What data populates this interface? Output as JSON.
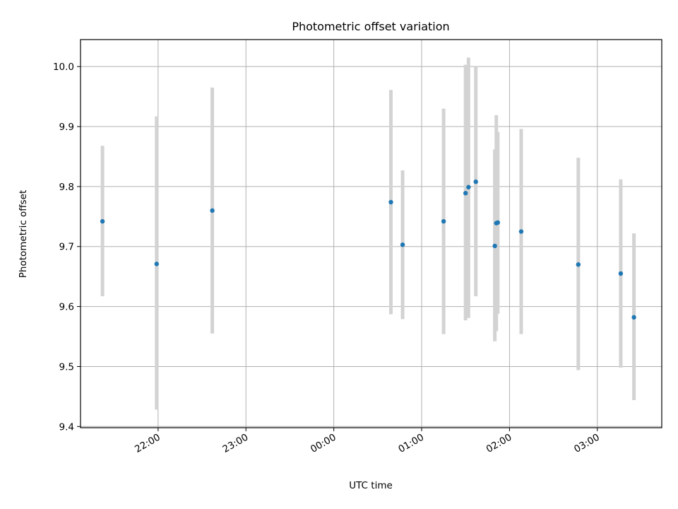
{
  "chart_data": {
    "type": "scatter",
    "title": "Photometric offset variation",
    "xlabel": "UTC time",
    "ylabel": "Photometric offset",
    "xlim": [
      "21:07",
      "03:44"
    ],
    "ylim": [
      9.398,
      10.045
    ],
    "grid": true,
    "x_ticks": [
      "22:00",
      "23:00",
      "00:00",
      "01:00",
      "02:00",
      "03:00"
    ],
    "y_ticks": [
      "9.4",
      "9.5",
      "9.6",
      "9.7",
      "9.8",
      "9.9",
      "10.0"
    ],
    "marker_color": "#1f77b4",
    "errorbar_color": "#d3d3d3",
    "series": [
      {
        "points": [
          {
            "time": "21:22",
            "y": 9.742,
            "ylow": 9.617,
            "yhigh": 9.868
          },
          {
            "time": "21:59",
            "y": 9.671,
            "ylow": 9.428,
            "yhigh": 9.917
          },
          {
            "time": "22:37",
            "y": 9.76,
            "ylow": 9.555,
            "yhigh": 9.965
          },
          {
            "time": "00:39",
            "y": 9.774,
            "ylow": 9.587,
            "yhigh": 9.961
          },
          {
            "time": "00:47",
            "y": 9.703,
            "ylow": 9.579,
            "yhigh": 9.827
          },
          {
            "time": "01:15",
            "y": 9.742,
            "ylow": 9.554,
            "yhigh": 9.93
          },
          {
            "time": "01:30",
            "y": 9.789,
            "ylow": 9.577,
            "yhigh": 10.003
          },
          {
            "time": "01:32",
            "y": 9.799,
            "ylow": 9.581,
            "yhigh": 10.015
          },
          {
            "time": "01:37",
            "y": 9.808,
            "ylow": 9.617,
            "yhigh": 9.999
          },
          {
            "time": "01:50",
            "y": 9.701,
            "ylow": 9.542,
            "yhigh": 9.862
          },
          {
            "time": "01:51",
            "y": 9.739,
            "ylow": 9.559,
            "yhigh": 9.919
          },
          {
            "time": "01:52",
            "y": 9.74,
            "ylow": 9.588,
            "yhigh": 9.891
          },
          {
            "time": "02:08",
            "y": 9.725,
            "ylow": 9.554,
            "yhigh": 9.896
          },
          {
            "time": "02:47",
            "y": 9.67,
            "ylow": 9.494,
            "yhigh": 9.848
          },
          {
            "time": "03:16",
            "y": 9.655,
            "ylow": 9.498,
            "yhigh": 9.812
          },
          {
            "time": "03:25",
            "y": 9.582,
            "ylow": 9.444,
            "yhigh": 9.722
          }
        ]
      }
    ]
  }
}
